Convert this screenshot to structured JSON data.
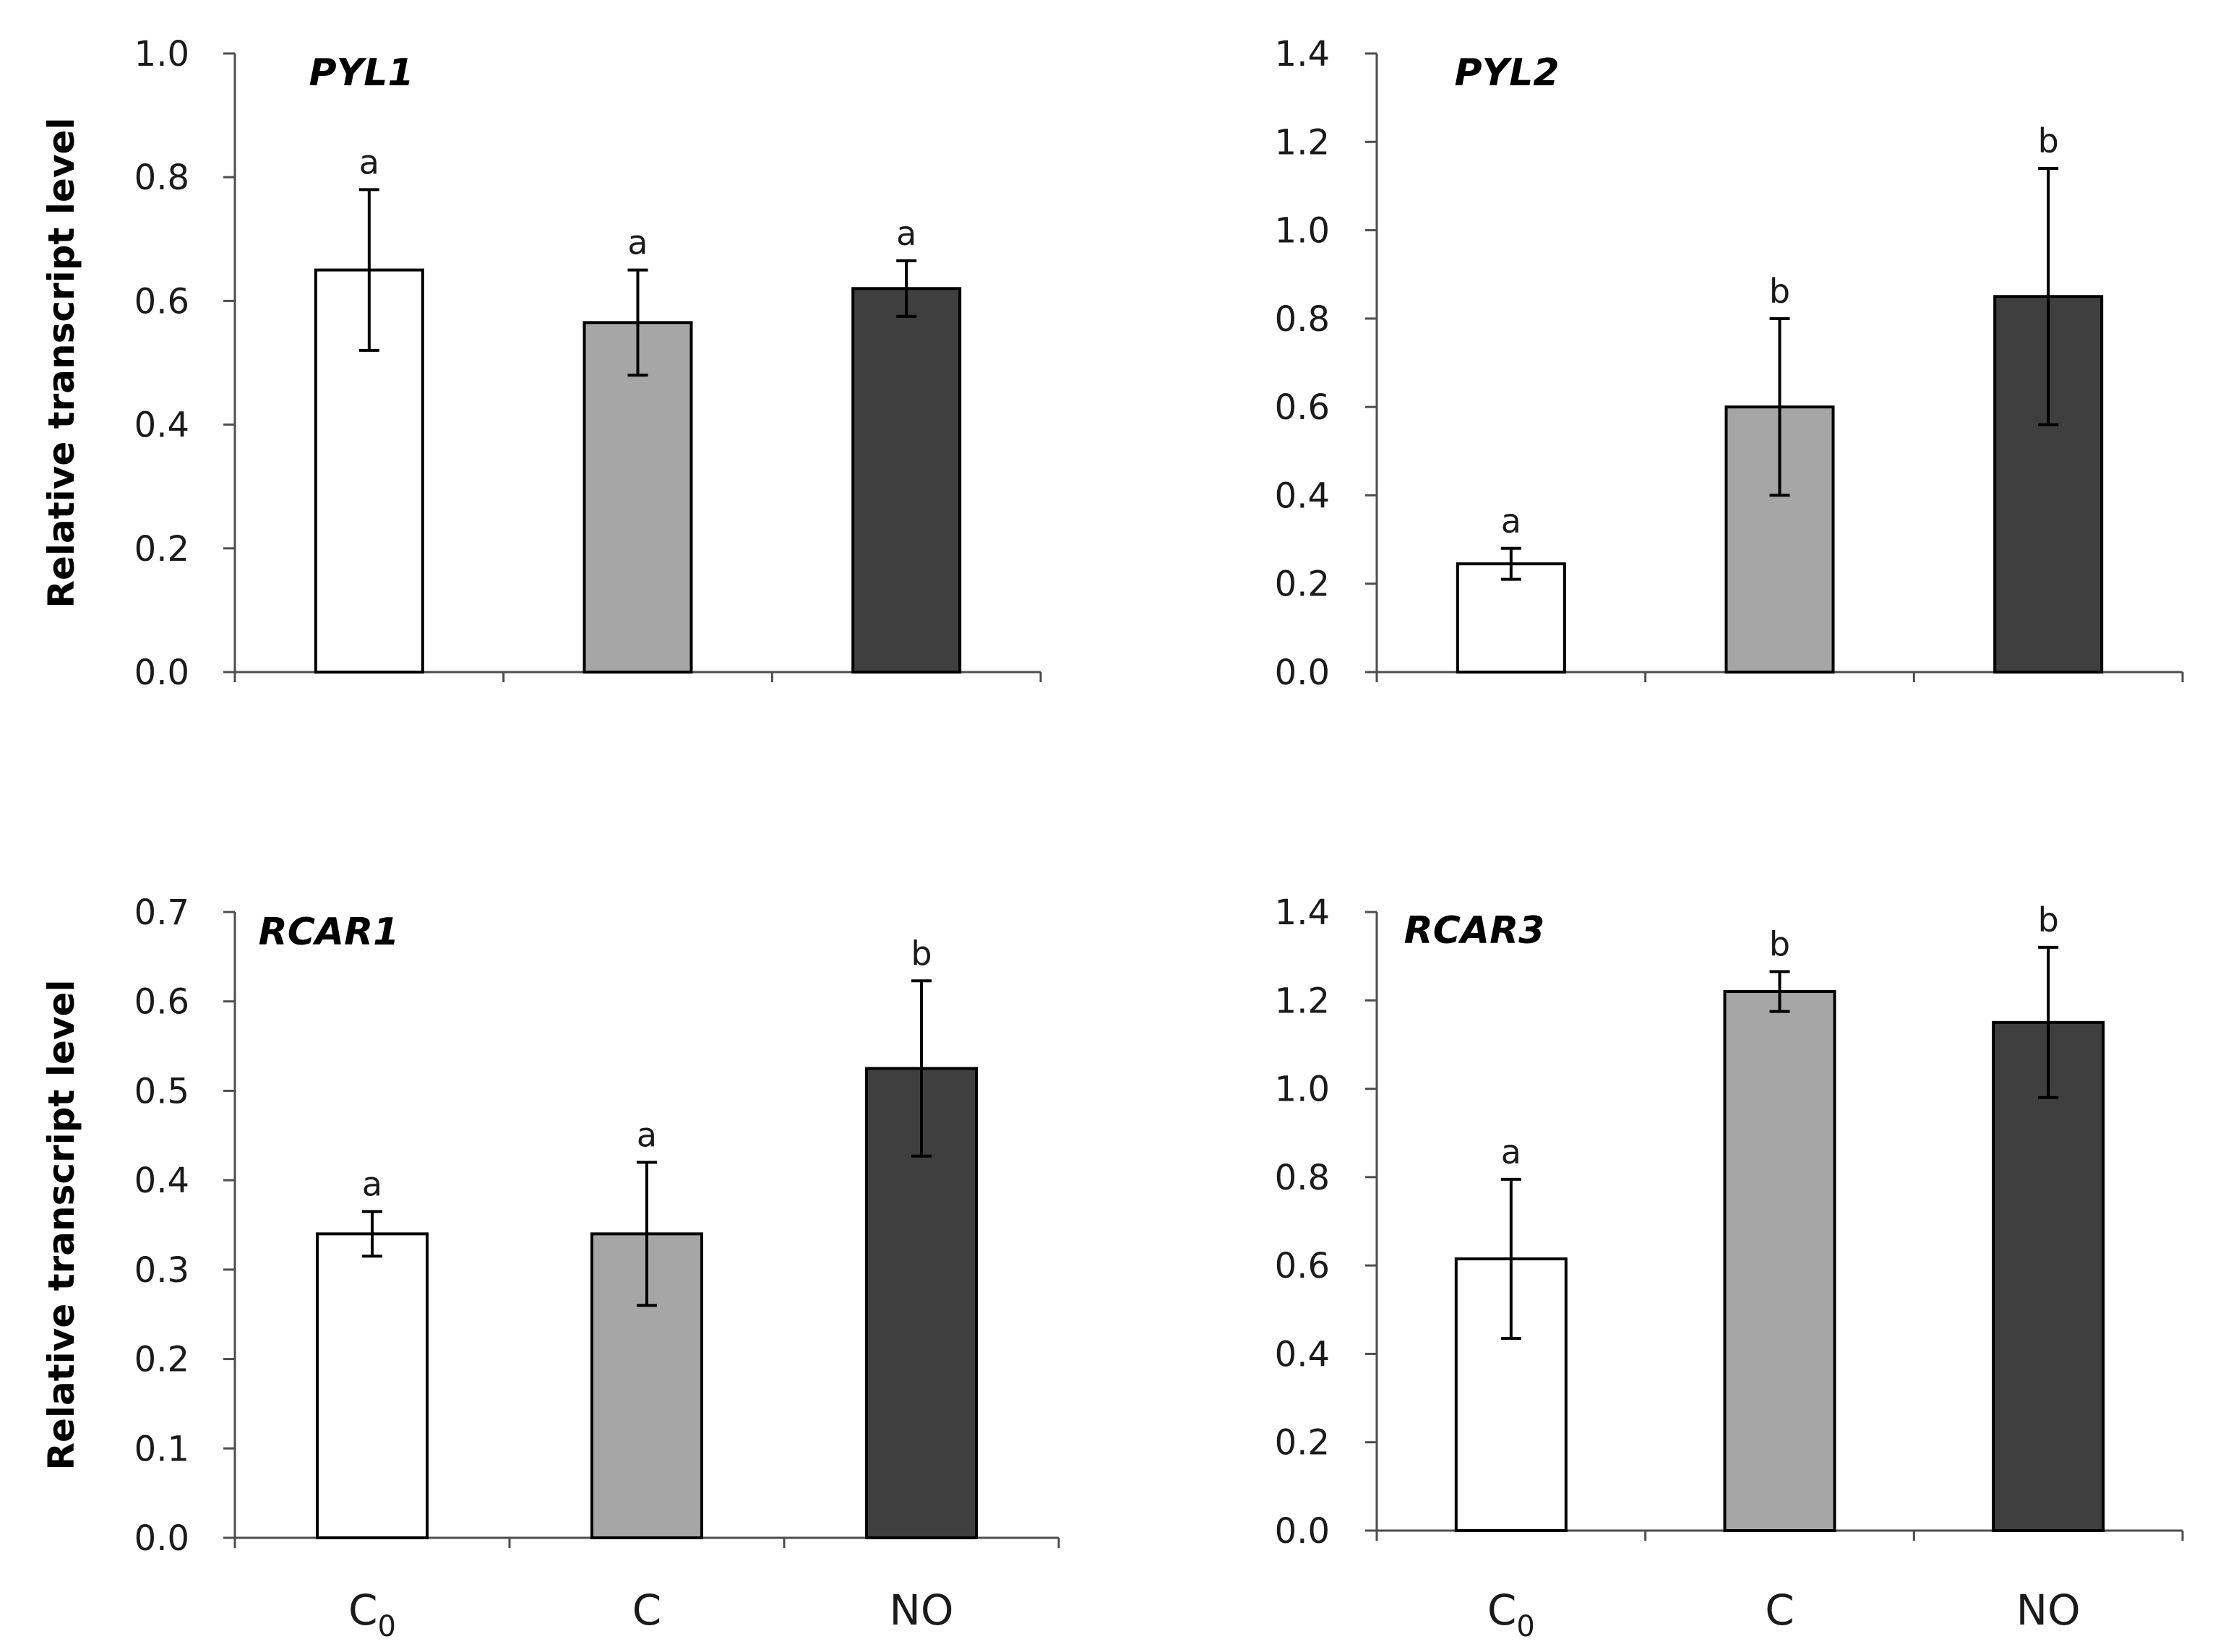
{
  "chart_data": [
    {
      "type": "bar",
      "title": "PYL1",
      "ylabel": "Relative transcript level",
      "categories": [
        "C0",
        "C",
        "NO"
      ],
      "values": [
        0.65,
        0.565,
        0.62
      ],
      "errors": [
        0.13,
        0.085,
        0.045
      ],
      "significance": [
        "a",
        "a",
        "a"
      ],
      "ylim": [
        0.0,
        1.0
      ],
      "yticks": [
        "0.0",
        "0.2",
        "0.4",
        "0.6",
        "0.8",
        "1.0"
      ]
    },
    {
      "type": "bar",
      "title": "PYL2",
      "ylabel": "",
      "categories": [
        "C0",
        "C",
        "NO"
      ],
      "values": [
        0.245,
        0.6,
        0.85
      ],
      "errors": [
        0.035,
        0.2,
        0.29
      ],
      "significance": [
        "a",
        "b",
        "b"
      ],
      "ylim": [
        0.0,
        1.4
      ],
      "yticks": [
        "0.0",
        "0.2",
        "0.4",
        "0.6",
        "0.8",
        "1.0",
        "1.2",
        "1.4"
      ]
    },
    {
      "type": "bar",
      "title": "RCAR1",
      "ylabel": "Relative transcript level",
      "categories": [
        "C0",
        "C",
        "NO"
      ],
      "values": [
        0.34,
        0.34,
        0.525
      ],
      "errors": [
        0.025,
        0.08,
        0.098
      ],
      "significance": [
        "a",
        "a",
        "b"
      ],
      "ylim": [
        0.0,
        0.7
      ],
      "yticks": [
        "0.0",
        "0.1",
        "0.2",
        "0.3",
        "0.4",
        "0.5",
        "0.6",
        "0.7"
      ]
    },
    {
      "type": "bar",
      "title": "RCAR3",
      "ylabel": "",
      "categories": [
        "C0",
        "C",
        "NO"
      ],
      "values": [
        0.615,
        1.22,
        1.15
      ],
      "errors": [
        0.18,
        0.045,
        0.17
      ],
      "significance": [
        "a",
        "b",
        "b"
      ],
      "ylim": [
        0.0,
        1.4
      ],
      "yticks": [
        "0.0",
        "0.2",
        "0.4",
        "0.6",
        "0.8",
        "1.0",
        "1.2",
        "1.4"
      ]
    }
  ],
  "x_labels": [
    {
      "main": "C",
      "sub": "0"
    },
    {
      "main": "C",
      "sub": ""
    },
    {
      "main": "NO",
      "sub": ""
    }
  ],
  "colors": {
    "C0": "#ffffff",
    "C": "#a6a6a6",
    "NO": "#3f3f3f"
  }
}
